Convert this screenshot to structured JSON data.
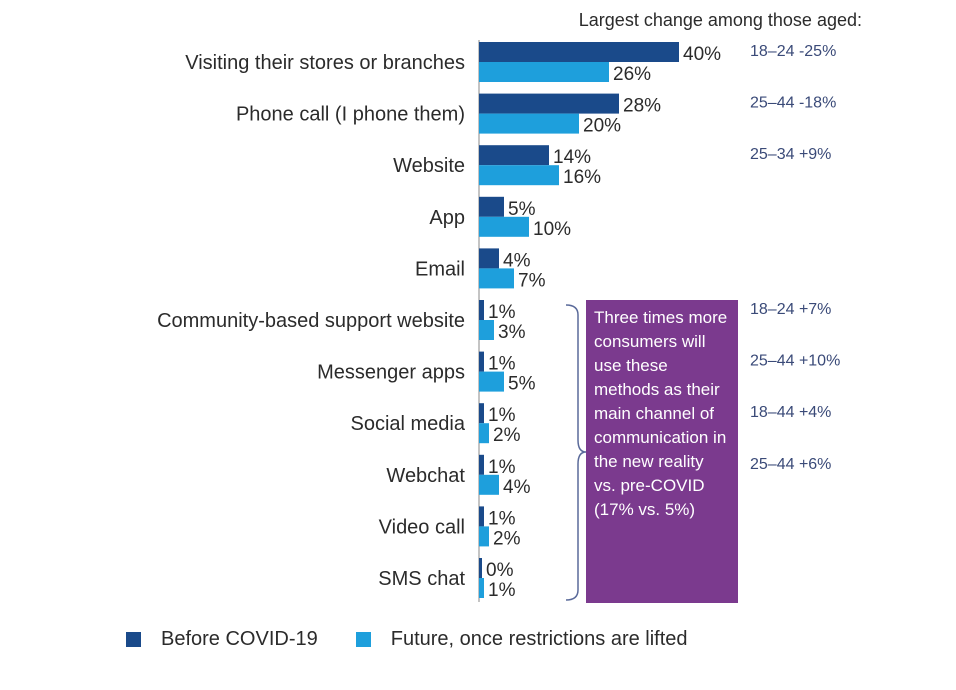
{
  "colors": {
    "before": "#1a4a8a",
    "future": "#1e9fdc",
    "callout_bg": "#7b3a8e",
    "age_text": "#3a4a78"
  },
  "header": {
    "text": "Largest change among those aged:"
  },
  "callout": {
    "text": "Three times more consumers will use these methods as their main channel of communication in the new reality vs. pre-COVID (17% vs. 5%)"
  },
  "legend": {
    "before_label": "Before COVID-19",
    "future_label": "Future, once restrictions are lifted"
  },
  "chart_data": {
    "type": "bar",
    "orientation": "horizontal",
    "categories": [
      "Visiting their stores or branches",
      "Phone call (I phone them)",
      "Website",
      "App",
      "Email",
      "Community-based support website",
      "Messenger apps",
      "Social media",
      "Webchat",
      "Video call",
      "SMS chat"
    ],
    "series": [
      {
        "name": "Before COVID-19",
        "values": [
          40,
          28,
          14,
          5,
          4,
          1,
          1,
          1,
          1,
          1,
          0
        ]
      },
      {
        "name": "Future, once restrictions are lifted",
        "values": [
          26,
          20,
          16,
          10,
          7,
          3,
          5,
          2,
          4,
          2,
          1
        ]
      }
    ],
    "value_labels": {
      "before": [
        "40%",
        "28%",
        "14%",
        "5%",
        "4%",
        "1%",
        "1%",
        "1%",
        "1%",
        "1%",
        "0%"
      ],
      "future": [
        "26%",
        "20%",
        "16%",
        "10%",
        "7%",
        "3%",
        "5%",
        "2%",
        "4%",
        "2%",
        "1%"
      ]
    },
    "age_changes": [
      "18–24 -25%",
      "25–44 -18%",
      "25–34 +9%",
      "",
      "",
      "18–24 +7%",
      "25–44 +10%",
      "18–44 +4%",
      "25–44 +6%",
      "",
      ""
    ],
    "xlim": [
      0,
      40
    ],
    "grid": false,
    "legend_position": "bottom"
  }
}
